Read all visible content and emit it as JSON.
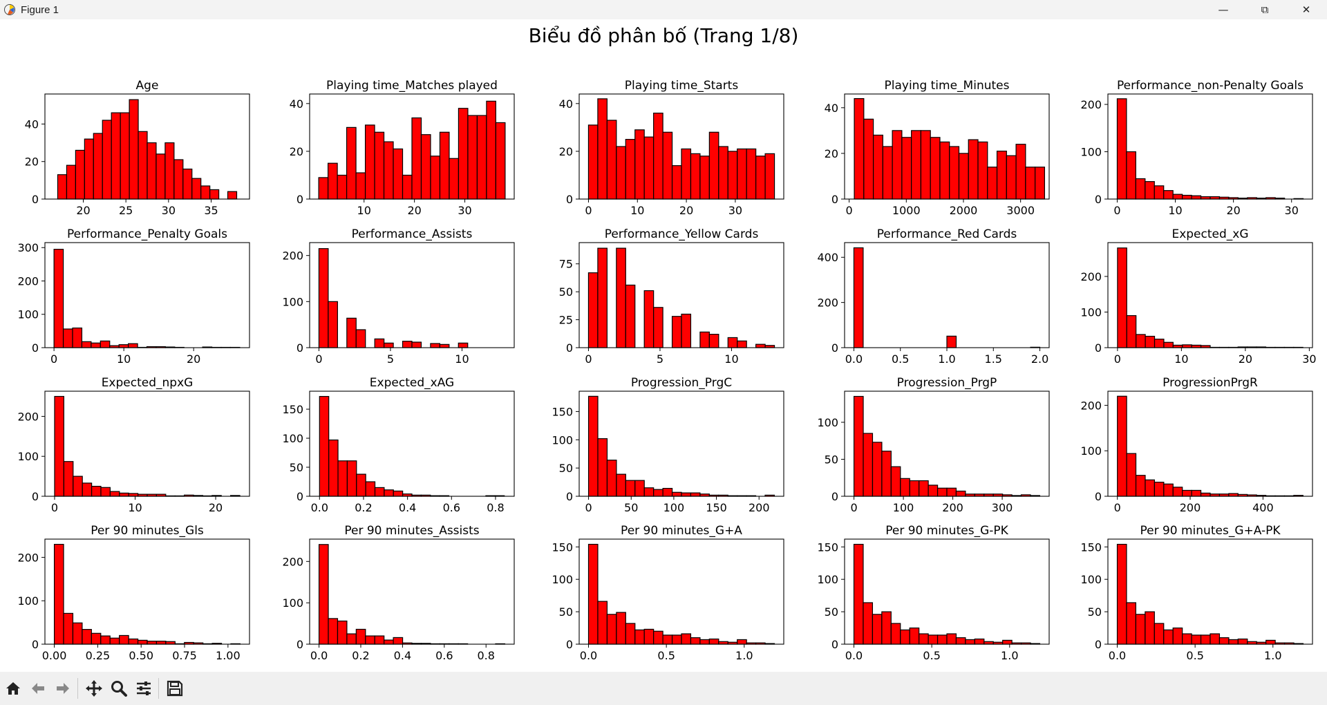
{
  "window": {
    "title": "Figure 1",
    "controls": {
      "minimize": "—",
      "maximize": "⧉",
      "close": "✕"
    }
  },
  "toolbar": {
    "buttons": [
      {
        "name": "home-icon",
        "glyph": "⌂"
      },
      {
        "name": "back-arrow-icon",
        "glyph": "←"
      },
      {
        "name": "forward-arrow-icon",
        "glyph": "→"
      },
      {
        "name": "pan-icon",
        "glyph": "✥"
      },
      {
        "name": "zoom-icon",
        "glyph": "🔍"
      },
      {
        "name": "configure-subplots-icon",
        "glyph": "☰"
      },
      {
        "name": "save-icon",
        "glyph": "💾"
      }
    ]
  },
  "colors": {
    "bar_fill": "#ff0000",
    "bar_edge": "#000000",
    "text": "#000000",
    "title_bar": "#f3f3f3",
    "toolbar_bg": "#f0f0f0"
  },
  "figure": {
    "suptitle": "Biểu đồ phân bố (Trang 1/8)"
  },
  "chart_data": [
    {
      "type": "bar",
      "title": "Age",
      "bins": {
        "start": 17,
        "width": 1.05
      },
      "values": [
        13,
        18,
        26,
        32,
        35,
        42,
        46,
        46,
        53,
        36,
        30,
        24,
        30,
        21,
        16,
        11,
        7,
        5,
        0,
        4
      ],
      "xlim": [
        15.5,
        39.5
      ],
      "ylim": [
        0,
        56
      ],
      "xticks": [
        20,
        25,
        30,
        35
      ],
      "yticks": [
        0,
        20,
        40
      ]
    },
    {
      "type": "bar",
      "title": "Playing time_Matches played",
      "bins": {
        "start": 1,
        "width": 1.85
      },
      "values": [
        9,
        15,
        10,
        30,
        11,
        31,
        28,
        24,
        21,
        10,
        34,
        27,
        18,
        28,
        17,
        38,
        35,
        35,
        41,
        32
      ],
      "xlim": [
        -0.8,
        39.8
      ],
      "ylim": [
        0,
        44
      ],
      "xticks": [
        10,
        20,
        30
      ],
      "yticks": [
        0,
        20,
        40
      ]
    },
    {
      "type": "bar",
      "title": "Playing time_Starts",
      "bins": {
        "start": 0,
        "width": 1.9
      },
      "values": [
        31,
        42,
        33,
        22,
        25,
        29,
        26,
        36,
        28,
        14,
        21,
        19,
        18,
        28,
        22,
        20,
        21,
        21,
        18,
        19
      ],
      "xlim": [
        -1.9,
        39.9
      ],
      "ylim": [
        0,
        44
      ],
      "xticks": [
        0,
        10,
        20,
        30
      ],
      "yticks": [
        0,
        20,
        40
      ]
    },
    {
      "type": "bar",
      "title": "Playing time_Minutes",
      "bins": {
        "start": 90,
        "width": 166.5
      },
      "values": [
        44,
        35,
        28,
        23,
        30,
        27,
        30,
        30,
        27,
        25,
        23,
        20,
        26,
        25,
        14,
        21,
        19,
        24,
        14,
        14
      ],
      "xlim": [
        -80,
        3500
      ],
      "ylim": [
        0,
        46
      ],
      "xticks": [
        0,
        1000,
        2000,
        3000
      ],
      "yticks": [
        0,
        20,
        40
      ]
    },
    {
      "type": "bar",
      "title": "Performance_non-Penalty Goals",
      "bins": {
        "start": 0,
        "width": 1.6
      },
      "values": [
        212,
        100,
        43,
        37,
        28,
        18,
        10,
        8,
        7,
        5,
        5,
        4,
        3,
        2,
        3,
        2,
        3,
        2,
        0,
        1
      ],
      "xlim": [
        -1.6,
        33.6
      ],
      "ylim": [
        0,
        222
      ],
      "xticks": [
        0,
        10,
        20,
        30
      ],
      "yticks": [
        0,
        100,
        200
      ]
    },
    {
      "type": "bar",
      "title": "Performance_Penalty Goals",
      "bins": {
        "start": 0,
        "width": 1.33
      },
      "values": [
        295,
        56,
        59,
        18,
        14,
        20,
        6,
        9,
        12,
        1,
        3,
        3,
        2,
        1,
        0,
        0,
        2,
        1,
        1,
        1
      ],
      "xlim": [
        -1.3,
        28
      ],
      "ylim": [
        0,
        315
      ],
      "xticks": [
        0,
        10,
        20
      ],
      "yticks": [
        0,
        100,
        200,
        300
      ]
    },
    {
      "type": "bar",
      "title": "Performance_Assists",
      "bins": {
        "start": 0,
        "width": 0.65
      },
      "values": [
        215,
        100,
        0,
        64,
        39,
        0,
        19,
        10,
        0,
        14,
        12,
        0,
        9,
        7,
        0,
        10,
        0,
        0,
        0,
        0
      ],
      "xlim": [
        -0.65,
        13.65
      ],
      "ylim": [
        0,
        228
      ],
      "xticks": [
        0,
        5,
        10
      ],
      "yticks": [
        0,
        100,
        200
      ]
    },
    {
      "type": "bar",
      "title": "Performance_Yellow Cards",
      "bins": {
        "start": 0,
        "width": 0.65
      },
      "values": [
        67,
        89,
        0,
        89,
        56,
        0,
        51,
        36,
        0,
        28,
        30,
        0,
        14,
        12,
        0,
        9,
        6,
        0,
        3,
        2
      ],
      "xlim": [
        -0.65,
        13.65
      ],
      "ylim": [
        0,
        94
      ],
      "xticks": [
        0,
        5,
        10
      ],
      "yticks": [
        0,
        25,
        50,
        75
      ]
    },
    {
      "type": "bar",
      "title": "Performance_Red Cards",
      "bins": {
        "start": 0,
        "width": 0.1
      },
      "values": [
        442,
        0,
        0,
        0,
        0,
        0,
        0,
        0,
        0,
        0,
        51,
        0,
        0,
        0,
        0,
        0,
        0,
        0,
        0,
        2
      ],
      "xlim": [
        -0.1,
        2.1
      ],
      "ylim": [
        0,
        465
      ],
      "xticks": [
        0.0,
        0.5,
        1.0,
        1.5,
        2.0
      ],
      "yticks": [
        0,
        200,
        400
      ]
    },
    {
      "type": "bar",
      "title": "Expected_xG",
      "bins": {
        "start": 0,
        "width": 1.45
      },
      "values": [
        280,
        90,
        37,
        32,
        24,
        15,
        7,
        8,
        7,
        6,
        1,
        1,
        1,
        2,
        2,
        2,
        1,
        1,
        1,
        1
      ],
      "xlim": [
        -1.5,
        30.5
      ],
      "ylim": [
        0,
        295
      ],
      "xticks": [
        0,
        10,
        20,
        30
      ],
      "yticks": [
        0,
        100,
        200
      ]
    },
    {
      "type": "bar",
      "title": "Expected_npxG",
      "bins": {
        "start": 0,
        "width": 1.15
      },
      "values": [
        250,
        87,
        50,
        33,
        25,
        22,
        12,
        8,
        7,
        5,
        5,
        5,
        1,
        1,
        3,
        2,
        1,
        2,
        0,
        2
      ],
      "xlim": [
        -1.2,
        24.2
      ],
      "ylim": [
        0,
        263
      ],
      "xticks": [
        0,
        10,
        20
      ],
      "yticks": [
        0,
        100,
        200
      ]
    },
    {
      "type": "bar",
      "title": "Expected_xAG",
      "bins": {
        "start": 0,
        "width": 0.042
      },
      "values": [
        172,
        97,
        61,
        61,
        38,
        25,
        15,
        11,
        9,
        4,
        2,
        2,
        1,
        1,
        0,
        0,
        0,
        0,
        1,
        1
      ],
      "xlim": [
        -0.045,
        0.885
      ],
      "ylim": [
        0,
        181
      ],
      "xticks": [
        0.0,
        0.2,
        0.4,
        0.6,
        0.8
      ],
      "yticks": [
        0,
        50,
        100,
        150
      ]
    },
    {
      "type": "bar",
      "title": "Progression_PrgC",
      "bins": {
        "start": 0,
        "width": 10.9
      },
      "values": [
        177,
        102,
        64,
        39,
        28,
        28,
        15,
        12,
        14,
        7,
        6,
        6,
        4,
        2,
        2,
        1,
        1,
        1,
        0,
        2
      ],
      "xlim": [
        -11,
        229
      ],
      "ylim": [
        0,
        186
      ],
      "xticks": [
        0,
        50,
        100,
        150,
        200
      ],
      "yticks": [
        0,
        50,
        100,
        150
      ]
    },
    {
      "type": "bar",
      "title": "Progression_PrgP",
      "bins": {
        "start": 0,
        "width": 18.8
      },
      "values": [
        135,
        85,
        73,
        61,
        40,
        24,
        21,
        21,
        15,
        11,
        11,
        7,
        3,
        3,
        3,
        3,
        2,
        1,
        2,
        1
      ],
      "xlim": [
        -19,
        395
      ],
      "ylim": [
        0,
        142
      ],
      "xticks": [
        0,
        100,
        200,
        300
      ],
      "yticks": [
        0,
        50,
        100
      ]
    },
    {
      "type": "bar",
      "title": "ProgressionPrgR",
      "bins": {
        "start": 0,
        "width": 25.5
      },
      "values": [
        220,
        94,
        46,
        36,
        31,
        27,
        20,
        13,
        13,
        7,
        5,
        5,
        6,
        4,
        3,
        2,
        1,
        1,
        1,
        2
      ],
      "xlim": [
        -26,
        536
      ],
      "ylim": [
        0,
        231
      ],
      "xticks": [
        0,
        200,
        400
      ],
      "yticks": [
        0,
        100,
        200
      ]
    },
    {
      "type": "bar",
      "title": "Per 90 minutes_Gls",
      "bins": {
        "start": 0,
        "width": 0.0535
      },
      "values": [
        230,
        71,
        49,
        34,
        25,
        19,
        14,
        20,
        12,
        9,
        7,
        7,
        6,
        1,
        4,
        3,
        1,
        2,
        0,
        1
      ],
      "xlim": [
        -0.054,
        1.124
      ],
      "ylim": [
        0,
        242
      ],
      "xticks": [
        0.0,
        0.25,
        0.5,
        0.75,
        1.0
      ],
      "yticks": [
        0,
        100,
        200
      ]
    },
    {
      "type": "bar",
      "title": "Per 90 minutes_Assists",
      "bins": {
        "start": 0,
        "width": 0.0445
      },
      "values": [
        241,
        62,
        56,
        25,
        36,
        20,
        20,
        10,
        16,
        3,
        2,
        2,
        1,
        1,
        1,
        1,
        0,
        0,
        0,
        1
      ],
      "xlim": [
        -0.045,
        0.935
      ],
      "ylim": [
        0,
        254
      ],
      "xticks": [
        0.0,
        0.2,
        0.4,
        0.6,
        0.8
      ],
      "yticks": [
        0,
        100,
        200
      ]
    },
    {
      "type": "bar",
      "title": "Per 90 minutes_G+A",
      "bins": {
        "start": 0,
        "width": 0.0597
      },
      "values": [
        154,
        66,
        46,
        49,
        32,
        22,
        23,
        20,
        14,
        14,
        16,
        10,
        7,
        8,
        4,
        3,
        7,
        2,
        2,
        1
      ],
      "xlim": [
        -0.06,
        1.254
      ],
      "ylim": [
        0,
        162
      ],
      "xticks": [
        0.0,
        0.5,
        1.0
      ],
      "yticks": [
        0,
        50,
        100,
        150
      ]
    },
    {
      "type": "bar",
      "title": "Per 90 minutes_G-PK",
      "bins": {
        "start": 0,
        "width": 0.0597
      },
      "values": [
        154,
        64,
        46,
        50,
        32,
        22,
        25,
        16,
        14,
        14,
        16,
        10,
        7,
        8,
        4,
        3,
        6,
        2,
        2,
        1
      ],
      "xlim": [
        -0.06,
        1.254
      ],
      "ylim": [
        0,
        162
      ],
      "xticks": [
        0.0,
        0.5,
        1.0
      ],
      "yticks": [
        0,
        50,
        100,
        150
      ]
    },
    {
      "type": "bar",
      "title": "Per 90 minutes_G+A-PK",
      "bins": {
        "start": 0,
        "width": 0.0597
      },
      "values": [
        154,
        64,
        46,
        50,
        32,
        22,
        25,
        16,
        14,
        14,
        16,
        10,
        7,
        8,
        4,
        3,
        6,
        2,
        2,
        1
      ],
      "xlim": [
        -0.06,
        1.254
      ],
      "ylim": [
        0,
        162
      ],
      "xticks": [
        0.0,
        0.5,
        1.0
      ],
      "yticks": [
        0,
        50,
        100,
        150
      ]
    }
  ]
}
